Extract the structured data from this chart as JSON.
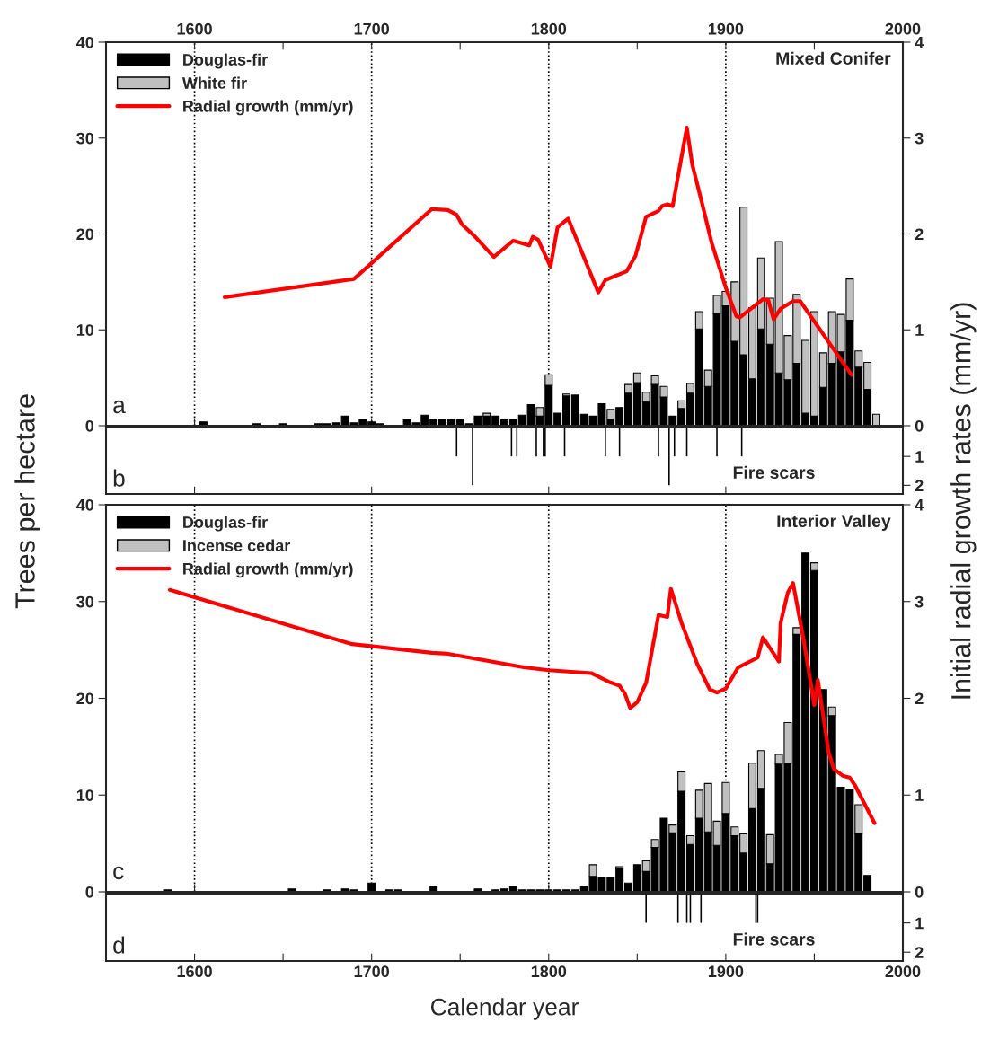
{
  "chart_data": [
    {
      "type": "bar",
      "stacked": true,
      "ylabel": "Trees per hectare",
      "y2label": "Initial radial growth rates (mm/yr)",
      "legend": "top left",
      "grid": "x",
      "tick_labels": "y",
      "annotations": [
        "a",
        "Mixed Conifer"
      ],
      "xlim": [
        1550,
        2000
      ],
      "xticks": [
        1600,
        1700,
        1800,
        1900,
        2000
      ],
      "x2lim": [
        1550,
        2000
      ],
      "x2ticks": [
        1600,
        {
          "value": 1650,
          "label": null
        },
        1700,
        {
          "value": 1750,
          "label": null
        },
        1800,
        {
          "value": 1850,
          "label": null
        },
        1900,
        {
          "value": 1950,
          "label": null
        },
        2000
      ],
      "ylim": [
        0,
        40
      ],
      "yticks": [
        0,
        10,
        20,
        30,
        40
      ],
      "y2lim": [
        0,
        4
      ],
      "y2ticks": [
        0,
        1,
        2,
        3,
        4
      ],
      "x": [
        1605,
        1635,
        1650,
        1670,
        1675,
        1680,
        1685,
        1690,
        1695,
        1700,
        1705,
        1720,
        1725,
        1730,
        1735,
        1740,
        1745,
        1750,
        1755,
        1760,
        1765,
        1770,
        1775,
        1780,
        1785,
        1790,
        1795,
        1800,
        1805,
        1810,
        1815,
        1820,
        1825,
        1830,
        1835,
        1840,
        1845,
        1850,
        1855,
        1860,
        1865,
        1870,
        1875,
        1880,
        1885,
        1890,
        1895,
        1900,
        1905,
        1910,
        1915,
        1920,
        1925,
        1930,
        1935,
        1940,
        1945,
        1950,
        1955,
        1960,
        1965,
        1970,
        1975,
        1980,
        1985
      ],
      "series": [
        {
          "name": "Douglas-fir",
          "color": "#000000",
          "values": [
            0.4,
            0.2,
            0.2,
            0.2,
            0.2,
            0.3,
            1.0,
            0.3,
            0.6,
            0.4,
            0.2,
            0.6,
            0.3,
            1.1,
            0.6,
            0.6,
            0.6,
            0.7,
            0.2,
            1.0,
            1.0,
            1.0,
            0.6,
            0.7,
            1.1,
            2.2,
            1.0,
            4.2,
            1.3,
            3.1,
            3.1,
            1.2,
            1.0,
            2.3,
            0.7,
            1.9,
            3.4,
            4.5,
            2.5,
            4.3,
            3.0,
            1.0,
            1.8,
            3.4,
            10.1,
            4.1,
            11.7,
            12.5,
            8.8,
            7.4,
            4.9,
            10.1,
            8.5,
            5.5,
            4.8,
            6.5,
            1.3,
            1.0,
            4.0,
            6.5,
            7.7,
            11.0,
            6.1,
            3.8,
            0
          ]
        },
        {
          "name": "White fir",
          "color": "#c0c0c0",
          "values": [
            0,
            0,
            0,
            0,
            0,
            0,
            0,
            0,
            0,
            0,
            0,
            0,
            0,
            0,
            0,
            0,
            0,
            0,
            0,
            0,
            0.3,
            0,
            0,
            0,
            0,
            0,
            0.9,
            1.1,
            0,
            0.2,
            0.1,
            0,
            0,
            0,
            1.0,
            0,
            0.9,
            1.0,
            1.0,
            0.9,
            1.1,
            0,
            0.8,
            1.0,
            1.8,
            1.7,
            1.9,
            1.5,
            6.2,
            15.4,
            7.4,
            7.4,
            4.8,
            13.7,
            4.6,
            7.2,
            7.6,
            10.9,
            3.6,
            5.4,
            3.9,
            4.3,
            1.7,
            2.8,
            1.2
          ]
        },
        {
          "name": "Radial growth (mm/yr)",
          "type": "line",
          "axis": "y2",
          "color": "#ff0000",
          "x": [
            1617,
            1690,
            1734,
            1743,
            1748,
            1751,
            1758,
            1769,
            1780,
            1789,
            1791,
            1794,
            1801,
            1805,
            1811,
            1828,
            1832,
            1844,
            1849,
            1855,
            1862,
            1864,
            1867,
            1870,
            1878,
            1881,
            1887,
            1892,
            1900,
            1906,
            1908,
            1921,
            1924,
            1927,
            1931,
            1938,
            1942,
            1971
          ],
          "values": [
            1.34,
            1.53,
            2.26,
            2.25,
            2.2,
            2.1,
            1.98,
            1.76,
            1.93,
            1.88,
            1.97,
            1.94,
            1.66,
            2.07,
            2.16,
            1.39,
            1.52,
            1.61,
            1.77,
            2.18,
            2.24,
            2.29,
            2.31,
            2.29,
            3.11,
            2.73,
            2.29,
            1.91,
            1.44,
            1.14,
            1.13,
            1.32,
            1.31,
            1.11,
            1.22,
            1.3,
            1.3,
            0.53
          ]
        }
      ]
    },
    {
      "type": "bar",
      "tick_labels": "y",
      "annotations": [
        "b",
        "Fire scars"
      ],
      "xlim": [
        1550,
        2000
      ],
      "xticks": [
        1600,
        1700,
        1800,
        1900,
        2000
      ],
      "y2lim": [
        2.3,
        0
      ],
      "y2ticks": [
        1,
        2
      ],
      "x": [
        1748,
        1757,
        1779,
        1782,
        1793,
        1797,
        1798,
        1809,
        1832,
        1840,
        1862,
        1868,
        1871,
        1878,
        1895,
        1909
      ],
      "series": [
        {
          "axis": "y2",
          "color": "#000000",
          "values": [
            1,
            2,
            1,
            1,
            1,
            1,
            1,
            1,
            1,
            1,
            1,
            2,
            1,
            1,
            1,
            1
          ]
        }
      ]
    },
    {
      "type": "bar",
      "stacked": true,
      "legend": "top left",
      "grid": "x",
      "tick_labels": "y",
      "annotations": [
        "c",
        "Interior Valley"
      ],
      "xlim": [
        1550,
        2000
      ],
      "xticks": [
        1600,
        1700,
        1800,
        1900,
        2000
      ],
      "ylim": [
        0,
        40
      ],
      "yticks": [
        0,
        10,
        20,
        30,
        40
      ],
      "y2lim": [
        0,
        4
      ],
      "y2ticks": [
        0,
        1,
        2,
        3,
        4
      ],
      "x": [
        1585,
        1655,
        1675,
        1685,
        1690,
        1700,
        1710,
        1715,
        1735,
        1760,
        1770,
        1775,
        1780,
        1785,
        1790,
        1795,
        1800,
        1805,
        1810,
        1815,
        1820,
        1825,
        1830,
        1835,
        1840,
        1845,
        1850,
        1855,
        1860,
        1865,
        1870,
        1875,
        1880,
        1885,
        1890,
        1895,
        1900,
        1905,
        1910,
        1915,
        1920,
        1925,
        1930,
        1935,
        1940,
        1945,
        1950,
        1955,
        1960,
        1965,
        1970,
        1975,
        1980
      ],
      "series": [
        {
          "name": "Douglas-fir",
          "color": "#000000",
          "values": [
            0.2,
            0.3,
            0.2,
            0.3,
            0.2,
            0.9,
            0.2,
            0.2,
            0.5,
            0.3,
            0.2,
            0.3,
            0.5,
            0.2,
            0.2,
            0.2,
            0.2,
            0.2,
            0.2,
            0.2,
            0.5,
            1.6,
            1.5,
            1.5,
            2.4,
            0.9,
            2.8,
            2.1,
            4.6,
            7.6,
            6.1,
            10.4,
            4.9,
            7.6,
            6.2,
            4.8,
            8.1,
            5.8,
            4.0,
            8.6,
            10.7,
            2.9,
            13.2,
            13.3,
            26.6,
            35.0,
            33.2,
            20.9,
            18.2,
            10.8,
            10.6,
            6.0,
            1.7
          ]
        },
        {
          "name": "Incense cedar",
          "color": "#c0c0c0",
          "values": [
            0,
            0,
            0,
            0,
            0,
            0,
            0,
            0,
            0,
            0,
            0,
            0,
            0,
            0,
            0,
            0,
            0,
            0,
            0,
            0,
            0,
            1.2,
            0,
            0,
            0.2,
            0,
            0,
            1.1,
            0.8,
            0,
            0.8,
            2.0,
            0.9,
            2.9,
            5.0,
            2.5,
            3.2,
            0.9,
            2.0,
            4.7,
            3.9,
            3.0,
            1.0,
            4.2,
            0.7,
            0,
            0.8,
            0,
            0.9,
            0,
            0,
            3.0,
            0
          ]
        },
        {
          "name": "Radial growth (mm/yr)",
          "type": "line",
          "axis": "y2",
          "color": "#ff0000",
          "x": [
            1586,
            1689,
            1734,
            1743,
            1786,
            1800,
            1824,
            1834,
            1840,
            1843,
            1846,
            1850,
            1855,
            1862,
            1867,
            1869,
            1875,
            1884,
            1891,
            1895,
            1900,
            1907,
            1918,
            1921,
            1930,
            1931,
            1935,
            1938,
            1944,
            1950,
            1952,
            1958,
            1961,
            1966,
            1970,
            1973,
            1984
          ],
          "values": [
            3.12,
            2.56,
            2.47,
            2.46,
            2.32,
            2.29,
            2.26,
            2.17,
            2.13,
            2.05,
            1.9,
            1.96,
            2.16,
            2.86,
            2.84,
            3.13,
            2.78,
            2.35,
            2.09,
            2.06,
            2.1,
            2.32,
            2.42,
            2.63,
            2.38,
            2.78,
            3.09,
            3.19,
            2.6,
            1.93,
            2.19,
            1.45,
            1.27,
            1.2,
            1.18,
            1.1,
            0.71
          ]
        }
      ]
    },
    {
      "type": "bar",
      "xlabel": "Calendar year",
      "annotations": [
        "d",
        "Fire scars"
      ],
      "xlim": [
        1550,
        2000
      ],
      "xticks": [
        1600,
        {
          "value": 1650,
          "label": null
        },
        1700,
        {
          "value": 1750,
          "label": null
        },
        1800,
        {
          "value": 1850,
          "label": null
        },
        1900,
        {
          "value": 1950,
          "label": null
        },
        2000
      ],
      "y2lim": [
        2.3,
        0
      ],
      "y2ticks": [
        1,
        2
      ],
      "x": [
        1855,
        1873,
        1878,
        1880,
        1886,
        1917,
        1918
      ],
      "series": [
        {
          "axis": "y2",
          "color": "#000000",
          "values": [
            1,
            1,
            1,
            1,
            1,
            1,
            1
          ]
        }
      ]
    }
  ]
}
